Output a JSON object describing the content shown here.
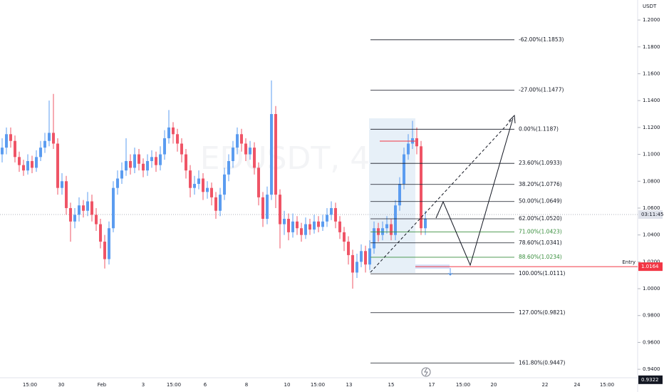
{
  "chart_data": {
    "type": "candlestick",
    "currency": "USDT",
    "watermark": "EDUSDT, 4",
    "up_color": "#5b9cf0",
    "down_color": "#ef5466",
    "ylim": [
      0.9337,
      1.2149
    ],
    "yticks": [
      {
        "value": 1.2,
        "label": "1.2000"
      },
      {
        "value": 1.18,
        "label": "1.1800"
      },
      {
        "value": 1.16,
        "label": "1.1600"
      },
      {
        "value": 1.14,
        "label": "1.1400"
      },
      {
        "value": 1.12,
        "label": "1.1200"
      },
      {
        "value": 1.1,
        "label": "1.1000"
      },
      {
        "value": 1.08,
        "label": "1.0800"
      },
      {
        "value": 1.06,
        "label": "1.0600"
      },
      {
        "value": 1.04,
        "label": "1.0400"
      },
      {
        "value": 1.02,
        "label": "1.0200"
      },
      {
        "value": 1.0,
        "label": "1.0000"
      },
      {
        "value": 0.98,
        "label": "0.9800"
      },
      {
        "value": 0.96,
        "label": "0.9600"
      },
      {
        "value": 0.94,
        "label": "0.9400"
      }
    ],
    "x_labels": [
      "15:00",
      "30",
      "Feb",
      "3",
      "15:00",
      "6",
      "8",
      "10",
      "15:00",
      "13",
      "15",
      "17",
      "15:00",
      "20",
      "22",
      "24",
      "15:00"
    ],
    "ohlc": [
      [
        1.1,
        1.112,
        1.094,
        1.105
      ],
      [
        1.105,
        1.12,
        1.1,
        1.115
      ],
      [
        1.115,
        1.12,
        1.105,
        1.11
      ],
      [
        1.11,
        1.114,
        1.094,
        1.098
      ],
      [
        1.098,
        1.102,
        1.087,
        1.092
      ],
      [
        1.092,
        1.096,
        1.084,
        1.088
      ],
      [
        1.088,
        1.1,
        1.085,
        1.095
      ],
      [
        1.095,
        1.099,
        1.086,
        1.09
      ],
      [
        1.09,
        1.103,
        1.087,
        1.098
      ],
      [
        1.098,
        1.11,
        1.095,
        1.105
      ],
      [
        1.105,
        1.116,
        1.101,
        1.11
      ],
      [
        1.11,
        1.14,
        1.106,
        1.116
      ],
      [
        1.116,
        1.145,
        1.104,
        1.108
      ],
      [
        1.108,
        1.112,
        1.07,
        1.075
      ],
      [
        1.075,
        1.086,
        1.07,
        1.08
      ],
      [
        1.08,
        1.084,
        1.055,
        1.06
      ],
      [
        1.06,
        1.064,
        1.035,
        1.05
      ],
      [
        1.05,
        1.06,
        1.045,
        1.055
      ],
      [
        1.055,
        1.068,
        1.05,
        1.062
      ],
      [
        1.062,
        1.066,
        1.053,
        1.058
      ],
      [
        1.058,
        1.072,
        1.054,
        1.065
      ],
      [
        1.065,
        1.07,
        1.05,
        1.055
      ],
      [
        1.055,
        1.06,
        1.043,
        1.048
      ],
      [
        1.048,
        1.052,
        1.03,
        1.035
      ],
      [
        1.035,
        1.04,
        1.015,
        1.022
      ],
      [
        1.022,
        1.05,
        1.018,
        1.045
      ],
      [
        1.045,
        1.08,
        1.042,
        1.075
      ],
      [
        1.075,
        1.088,
        1.07,
        1.082
      ],
      [
        1.082,
        1.094,
        1.078,
        1.088
      ],
      [
        1.088,
        1.112,
        1.084,
        1.095
      ],
      [
        1.095,
        1.1,
        1.085,
        1.09
      ],
      [
        1.09,
        1.105,
        1.086,
        1.1
      ],
      [
        1.1,
        1.104,
        1.088,
        1.093
      ],
      [
        1.093,
        1.097,
        1.083,
        1.088
      ],
      [
        1.088,
        1.1,
        1.084,
        1.095
      ],
      [
        1.095,
        1.103,
        1.09,
        1.098
      ],
      [
        1.098,
        1.102,
        1.087,
        1.092
      ],
      [
        1.092,
        1.106,
        1.088,
        1.1
      ],
      [
        1.1,
        1.118,
        1.096,
        1.112
      ],
      [
        1.112,
        1.133,
        1.108,
        1.12
      ],
      [
        1.12,
        1.124,
        1.108,
        1.115
      ],
      [
        1.115,
        1.119,
        1.102,
        1.108
      ],
      [
        1.108,
        1.112,
        1.094,
        1.1
      ],
      [
        1.1,
        1.104,
        1.082,
        1.088
      ],
      [
        1.088,
        1.092,
        1.068,
        1.075
      ],
      [
        1.075,
        1.084,
        1.07,
        1.078
      ],
      [
        1.078,
        1.088,
        1.074,
        1.082
      ],
      [
        1.082,
        1.086,
        1.066,
        1.072
      ],
      [
        1.072,
        1.08,
        1.067,
        1.075
      ],
      [
        1.075,
        1.079,
        1.062,
        1.068
      ],
      [
        1.068,
        1.072,
        1.052,
        1.058
      ],
      [
        1.058,
        1.075,
        1.054,
        1.07
      ],
      [
        1.07,
        1.09,
        1.066,
        1.085
      ],
      [
        1.085,
        1.1,
        1.08,
        1.095
      ],
      [
        1.095,
        1.11,
        1.09,
        1.105
      ],
      [
        1.105,
        1.12,
        1.1,
        1.115
      ],
      [
        1.115,
        1.119,
        1.102,
        1.108
      ],
      [
        1.108,
        1.112,
        1.095,
        1.1
      ],
      [
        1.1,
        1.11,
        1.096,
        1.105
      ],
      [
        1.105,
        1.109,
        1.085,
        1.09
      ],
      [
        1.09,
        1.094,
        1.062,
        1.068
      ],
      [
        1.068,
        1.072,
        1.046,
        1.052
      ],
      [
        1.052,
        1.076,
        1.048,
        1.07
      ],
      [
        1.07,
        1.155,
        1.066,
        1.13
      ],
      [
        1.13,
        1.136,
        1.06,
        1.07
      ],
      [
        1.07,
        1.074,
        1.03,
        1.048
      ],
      [
        1.048,
        1.058,
        1.04,
        1.052
      ],
      [
        1.052,
        1.056,
        1.036,
        1.042
      ],
      [
        1.042,
        1.056,
        1.038,
        1.05
      ],
      [
        1.05,
        1.054,
        1.04,
        1.045
      ],
      [
        1.045,
        1.049,
        1.035,
        1.04
      ],
      [
        1.04,
        1.053,
        1.037,
        1.048
      ],
      [
        1.048,
        1.052,
        1.04,
        1.044
      ],
      [
        1.044,
        1.055,
        1.041,
        1.05
      ],
      [
        1.05,
        1.054,
        1.042,
        1.046
      ],
      [
        1.046,
        1.055,
        1.043,
        1.05
      ],
      [
        1.05,
        1.06,
        1.046,
        1.055
      ],
      [
        1.055,
        1.065,
        1.051,
        1.06
      ],
      [
        1.06,
        1.064,
        1.045,
        1.05
      ],
      [
        1.05,
        1.054,
        1.037,
        1.042
      ],
      [
        1.042,
        1.046,
        1.028,
        1.035
      ],
      [
        1.035,
        1.039,
        1.018,
        1.025
      ],
      [
        1.025,
        1.029,
        1.0,
        1.012
      ],
      [
        1.012,
        1.026,
        1.008,
        1.02
      ],
      [
        1.02,
        1.033,
        1.016,
        1.028
      ],
      [
        1.028,
        1.032,
        1.012,
        1.018
      ],
      [
        1.018,
        1.036,
        1.014,
        1.03
      ],
      [
        1.03,
        1.05,
        1.026,
        1.045
      ],
      [
        1.045,
        1.049,
        1.035,
        1.04
      ],
      [
        1.04,
        1.05,
        1.036,
        1.045
      ],
      [
        1.045,
        1.054,
        1.041,
        1.048
      ],
      [
        1.048,
        1.052,
        1.036,
        1.04
      ],
      [
        1.04,
        1.066,
        1.036,
        1.062
      ],
      [
        1.062,
        1.083,
        1.058,
        1.078
      ],
      [
        1.078,
        1.105,
        1.074,
        1.1
      ],
      [
        1.1,
        1.115,
        1.096,
        1.108
      ],
      [
        1.108,
        1.125,
        1.104,
        1.112
      ],
      [
        1.112,
        1.12,
        1.1,
        1.106
      ],
      [
        1.106,
        1.11,
        1.04,
        1.045
      ],
      [
        1.045,
        1.058,
        1.04,
        1.052
      ]
    ],
    "fib_levels": [
      {
        "label": "-62.00%(1.1853)",
        "value": 1.1853,
        "color": "#131722"
      },
      {
        "label": "-27.00%(1.1477)",
        "value": 1.1477,
        "color": "#131722"
      },
      {
        "label": "0.00%(1.1187)",
        "value": 1.1187,
        "color": "#131722"
      },
      {
        "label": "23.60%(1.0933)",
        "value": 1.0933,
        "color": "#131722"
      },
      {
        "label": "38.20%(1.0776)",
        "value": 1.0776,
        "color": "#131722"
      },
      {
        "label": "50.00%(1.0649)",
        "value": 1.0649,
        "color": "#131722"
      },
      {
        "label": "62.00%(1.0520)",
        "value": 1.052,
        "color": "#131722"
      },
      {
        "label": "71.00%(1.0423)",
        "value": 1.0423,
        "color": "#388e3c"
      },
      {
        "label": "78.60%(1.0341)",
        "value": 1.0341,
        "color": "#131722"
      },
      {
        "label": "88.60%(1.0234)",
        "value": 1.0234,
        "color": "#388e3c"
      },
      {
        "label": "100.00%(1.0111)",
        "value": 1.0111,
        "color": "#131722"
      },
      {
        "label": "127.00%(0.9821)",
        "value": 0.9821,
        "color": "#131722"
      },
      {
        "label": "161.80%(0.9447)",
        "value": 0.9447,
        "color": "#131722"
      }
    ],
    "entry": {
      "label": "Entry",
      "value": 1.0164,
      "color": "#f23645"
    },
    "current_price": 1.0552,
    "countdown": "03:11:45",
    "low_tag": 0.9322
  }
}
